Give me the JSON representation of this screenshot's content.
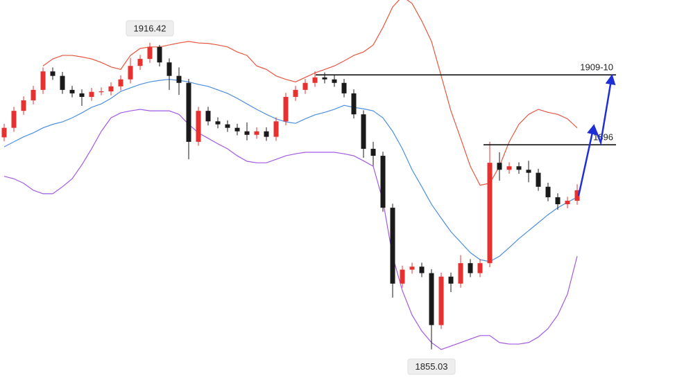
{
  "chart_data": {
    "type": "candlestick",
    "up_color": "#e8312f",
    "down_color": "#1a1a1a",
    "ylim": [
      1848.9,
      1925.0
    ],
    "open": [
      1897.5,
      1899.4,
      1902.8,
      1904.9,
      1907.0,
      1910.7,
      1909.8,
      1907.0,
      1906.3,
      1905.6,
      1906.6,
      1906.7,
      1907.7,
      1909.1,
      1911.8,
      1913.2,
      1915.6,
      1912.5,
      1909.8,
      1908.4,
      1896.6,
      1902.8,
      1900.7,
      1900.1,
      1899.4,
      1898.7,
      1898.0,
      1898.7,
      1897.6,
      1900.7,
      1905.6,
      1907.0,
      1908.4,
      1909.5,
      1909.1,
      1908.4,
      1906.3,
      1902.1,
      1895.2,
      1893.8,
      1883.4,
      1868.2,
      1871.0,
      1871.6,
      1870.3,
      1859.9,
      1869.6,
      1868.2,
      1872.3,
      1870.3,
      1872.3,
      1892.4,
      1891.0,
      1891.7,
      1891.0,
      1890.4,
      1887.6,
      1885.5,
      1884.1,
      1884.8
    ],
    "high": [
      1900.2,
      1903.6,
      1905.7,
      1907.8,
      1911.5,
      1911.5,
      1910.6,
      1907.8,
      1907.1,
      1907.4,
      1907.5,
      1908.5,
      1909.9,
      1913.4,
      1914.0,
      1916.42,
      1916.0,
      1913.3,
      1911.5,
      1909.2,
      1903.6,
      1903.6,
      1901.5,
      1900.9,
      1900.2,
      1900.5,
      1899.5,
      1899.5,
      1901.5,
      1906.4,
      1907.8,
      1909.2,
      1910.7,
      1910.5,
      1909.9,
      1909.2,
      1907.1,
      1902.9,
      1896.6,
      1894.6,
      1884.2,
      1871.8,
      1872.4,
      1872.4,
      1871.1,
      1870.4,
      1870.4,
      1873.9,
      1873.1,
      1873.1,
      1896.6,
      1894.5,
      1892.5,
      1892.5,
      1892.8,
      1891.2,
      1888.4,
      1886.3,
      1885.6,
      1888.1
    ],
    "low": [
      1896.7,
      1898.6,
      1902.0,
      1904.1,
      1906.2,
      1909.0,
      1906.2,
      1905.5,
      1903.8,
      1904.8,
      1905.9,
      1905.9,
      1906.9,
      1908.3,
      1911.0,
      1912.4,
      1911.7,
      1907.0,
      1906.0,
      1893.1,
      1895.8,
      1899.9,
      1899.3,
      1898.6,
      1897.9,
      1896.9,
      1897.2,
      1896.8,
      1896.8,
      1899.9,
      1904.8,
      1906.2,
      1907.6,
      1908.3,
      1907.6,
      1905.5,
      1901.3,
      1893.4,
      1891.8,
      1882.6,
      1865.4,
      1867.4,
      1870.2,
      1869.5,
      1855.03,
      1859.1,
      1866.5,
      1867.4,
      1869.5,
      1869.5,
      1871.5,
      1888.8,
      1890.2,
      1890.2,
      1888.5,
      1886.8,
      1884.7,
      1883.0,
      1883.3,
      1884.0
    ],
    "close": [
      1899.4,
      1902.8,
      1904.9,
      1907.0,
      1910.7,
      1909.8,
      1907.0,
      1906.3,
      1905.6,
      1906.6,
      1906.7,
      1907.7,
      1909.1,
      1911.8,
      1913.2,
      1915.6,
      1912.5,
      1909.8,
      1908.4,
      1896.6,
      1902.8,
      1900.7,
      1900.1,
      1899.4,
      1898.7,
      1898.0,
      1898.7,
      1897.6,
      1900.7,
      1905.6,
      1907.0,
      1908.4,
      1909.5,
      1909.1,
      1908.4,
      1906.3,
      1902.1,
      1895.2,
      1893.8,
      1883.4,
      1868.2,
      1871.0,
      1871.6,
      1870.3,
      1859.9,
      1869.6,
      1868.2,
      1872.3,
      1870.3,
      1872.3,
      1892.4,
      1891.0,
      1891.7,
      1891.0,
      1890.4,
      1887.6,
      1885.5,
      1884.1,
      1884.8,
      1886.9
    ],
    "bands": [
      {
        "color": "#e8563f",
        "values": [
          null,
          null,
          null,
          null,
          1911.8,
          1913.2,
          1913.9,
          1913.9,
          1913.6,
          1913.2,
          1912.5,
          1911.6,
          1911.1,
          1913.9,
          1915.3,
          1915.6,
          1915.6,
          1916.0,
          1916.4,
          1916.7,
          1916.4,
          1916.3,
          1916.0,
          1915.6,
          1914.6,
          1913.9,
          1911.8,
          1911.1,
          1909.8,
          1909.1,
          1908.6,
          1909.5,
          1910.4,
          1911.1,
          1911.8,
          1912.8,
          1913.9,
          1914.6,
          1916.0,
          1919.5,
          1923.6,
          1925.7,
          1924.3,
          1920.8,
          1916.7,
          1909.8,
          1902.8,
          1897.3,
          1891.7,
          1887.9,
          1888.3,
          1891.7,
          1896.6,
          1900.1,
          1902.1,
          1903.1,
          1902.5,
          1902.1,
          1901.2,
          1899.4
        ]
      },
      {
        "color": "#4a8fe0",
        "values": [
          1895.6,
          1896.6,
          1897.6,
          1898.4,
          1899.4,
          1900.1,
          1900.6,
          1901.4,
          1902.4,
          1903.5,
          1904.2,
          1905.3,
          1906.7,
          1907.4,
          1908.1,
          1908.6,
          1908.9,
          1909.1,
          1908.9,
          1908.6,
          1908.1,
          1907.7,
          1907.0,
          1906.3,
          1905.3,
          1904.2,
          1903.1,
          1902.1,
          1901.2,
          1900.6,
          1900.3,
          1901.2,
          1902.0,
          1902.5,
          1903.1,
          1903.9,
          1903.5,
          1903.2,
          1902.8,
          1901.4,
          1898.7,
          1895.2,
          1891.0,
          1887.6,
          1884.1,
          1881.3,
          1878.6,
          1876.5,
          1874.4,
          1873.0,
          1872.6,
          1873.7,
          1875.4,
          1877.2,
          1878.8,
          1880.4,
          1882.0,
          1883.4,
          1884.5,
          1885.5
        ]
      },
      {
        "color": "#a259e6",
        "values": [
          1889.7,
          1889.2,
          1888.3,
          1886.9,
          1886.2,
          1886.2,
          1887.6,
          1889.2,
          1892.0,
          1895.2,
          1898.7,
          1901.4,
          1902.4,
          1902.8,
          1903.1,
          1902.8,
          1902.8,
          1902.8,
          1902.1,
          1900.1,
          1898.4,
          1897.3,
          1896.2,
          1895.2,
          1893.8,
          1892.7,
          1892.4,
          1892.4,
          1893.1,
          1893.8,
          1894.2,
          1894.5,
          1894.5,
          1894.5,
          1894.5,
          1894.2,
          1893.8,
          1892.8,
          1891.7,
          1884.8,
          1873.7,
          1866.8,
          1861.9,
          1858.7,
          1856.4,
          1855.0,
          1855.7,
          1856.4,
          1857.1,
          1857.8,
          1857.8,
          1856.4,
          1856.1,
          1856.1,
          1856.4,
          1857.5,
          1859.2,
          1861.9,
          1866.1,
          1873.7
        ]
      }
    ],
    "levels": [
      {
        "value": 1910,
        "label": "1909-10"
      },
      {
        "value": 1896,
        "label": "1896"
      }
    ],
    "max_label": 1916.42,
    "min_label": 1855.03
  }
}
